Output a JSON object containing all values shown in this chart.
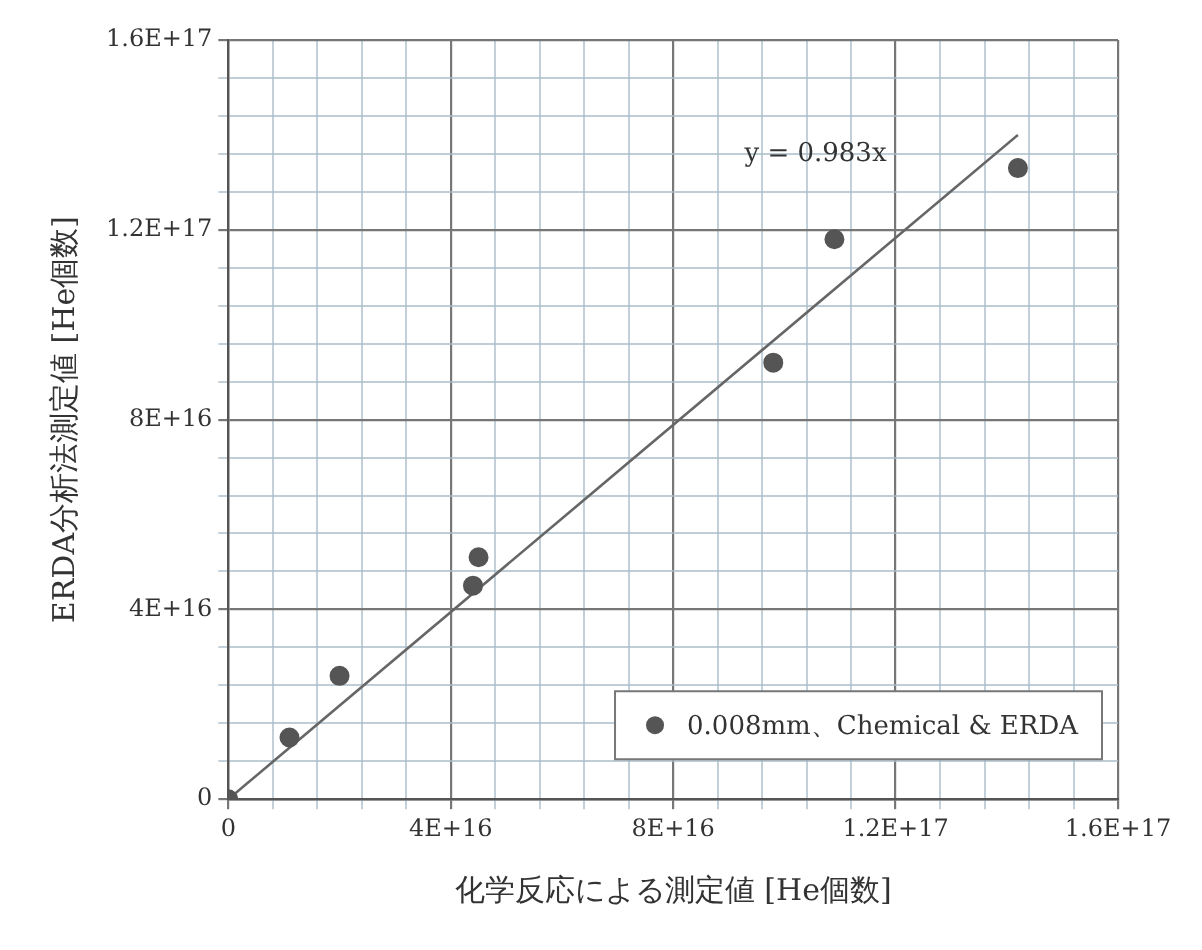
{
  "chart_data": {
    "type": "scatter",
    "xlabel": "化学反応による測定値 [He個数]",
    "ylabel": "ERDA分析法測定値 [He個数]",
    "xlim": [
      0,
      1.6e+17
    ],
    "ylim": [
      0,
      1.6e+17
    ],
    "xticks": [
      0,
      {
        "value": 8000000000000000.0,
        "label": null
      },
      {
        "value": 1.6e+16,
        "label": null
      },
      {
        "value": 2.4e+16,
        "label": null
      },
      {
        "value": 3.2e+16,
        "label": null
      },
      {
        "value": 4e+16,
        "label": "4E+16"
      },
      {
        "value": 4.8e+16,
        "label": null
      },
      {
        "value": 5.6e+16,
        "label": null
      },
      {
        "value": 6.4e+16,
        "label": null
      },
      {
        "value": 7.2e+16,
        "label": null
      },
      {
        "value": 8e+16,
        "label": "8E+16"
      },
      {
        "value": 8.8e+16,
        "label": null
      },
      {
        "value": 9.6e+16,
        "label": null
      },
      {
        "value": 1.04e+17,
        "label": null
      },
      {
        "value": 1.12e+17,
        "label": null
      },
      {
        "value": 1.2e+17,
        "label": "1.2E+17"
      },
      {
        "value": 1.28e+17,
        "label": null
      },
      {
        "value": 1.36e+17,
        "label": null
      },
      {
        "value": 1.44e+17,
        "label": null
      },
      {
        "value": 1.52e+17,
        "label": null
      },
      {
        "value": 1.6e+17,
        "label": "1.6E+17"
      }
    ],
    "yticks": [
      0,
      {
        "value": 8000000000000000.0,
        "label": null
      },
      {
        "value": 1.6e+16,
        "label": null
      },
      {
        "value": 2.4e+16,
        "label": null
      },
      {
        "value": 3.2e+16,
        "label": null
      },
      {
        "value": 4e+16,
        "label": "4E+16"
      },
      {
        "value": 4.8e+16,
        "label": null
      },
      {
        "value": 5.6e+16,
        "label": null
      },
      {
        "value": 6.4e+16,
        "label": null
      },
      {
        "value": 7.2e+16,
        "label": null
      },
      {
        "value": 8e+16,
        "label": "8E+16"
      },
      {
        "value": 8.8e+16,
        "label": null
      },
      {
        "value": 9.6e+16,
        "label": null
      },
      {
        "value": 1.04e+17,
        "label": null
      },
      {
        "value": 1.12e+17,
        "label": null
      },
      {
        "value": 1.2e+17,
        "label": "1.2E+17"
      },
      {
        "value": 1.28e+17,
        "label": null
      },
      {
        "value": 1.36e+17,
        "label": null
      },
      {
        "value": 1.44e+17,
        "label": null
      },
      {
        "value": 1.52e+17,
        "label": null
      },
      {
        "value": 1.6e+17,
        "label": "1.6E+17"
      }
    ],
    "grid": true,
    "legend": "bottom right",
    "marker": "circle",
    "series": [
      {
        "name": "0.008mm、Chemical & ERDA",
        "color": "#555555",
        "x": [
          0,
          1.1e+16,
          2e+16,
          4.4e+16,
          4.5e+16,
          9.8e+16,
          1.09e+17,
          1.42e+17
        ],
        "values": [
          0,
          1.3e+16,
          2.6e+16,
          4.5e+16,
          5.1e+16,
          9.2e+16,
          1.18e+17,
          1.33e+17
        ]
      },
      {
        "type": "line",
        "color": "#666666",
        "marker": "none",
        "line_style": "solid",
        "x": [
          0,
          1.42e+17
        ],
        "values": [
          0,
          1.4e+17
        ]
      }
    ],
    "annotations": [
      "y = 0.983x"
    ]
  }
}
